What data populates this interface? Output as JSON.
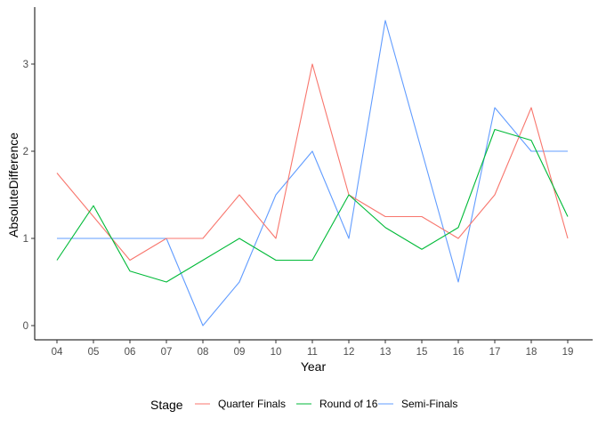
{
  "chart_data": {
    "type": "line",
    "title": "",
    "xlabel": "Year",
    "ylabel": "AbsoluteDifference",
    "categories": [
      "04",
      "05",
      "06",
      "07",
      "08",
      "09",
      "10",
      "11",
      "12",
      "13",
      "15",
      "16",
      "17",
      "18",
      "19"
    ],
    "yticks": [
      "0",
      "1",
      "2",
      "3"
    ],
    "ylim": [
      0,
      3.5
    ],
    "grid": false,
    "legend": {
      "title": "Stage",
      "placement": "bottom"
    },
    "series": [
      {
        "name": "Quarter Finals",
        "color": "#F8766D",
        "values": [
          1.75,
          1.25,
          0.75,
          1.0,
          1.0,
          1.5,
          1.0,
          3.0,
          1.5,
          1.25,
          1.25,
          1.0,
          1.5,
          2.5,
          1.0
        ]
      },
      {
        "name": "Round of 16",
        "color": "#00BA38",
        "values": [
          0.75,
          1.375,
          0.625,
          0.5,
          0.75,
          1.0,
          0.75,
          0.75,
          1.5,
          1.125,
          0.875,
          1.125,
          2.25,
          2.125,
          1.25
        ]
      },
      {
        "name": "Semi-Finals",
        "color": "#619CFF",
        "values": [
          1.0,
          1.0,
          1.0,
          1.0,
          0.0,
          0.5,
          1.5,
          2.0,
          1.0,
          3.5,
          2.0,
          0.5,
          2.5,
          2.0,
          2.0
        ]
      }
    ]
  }
}
